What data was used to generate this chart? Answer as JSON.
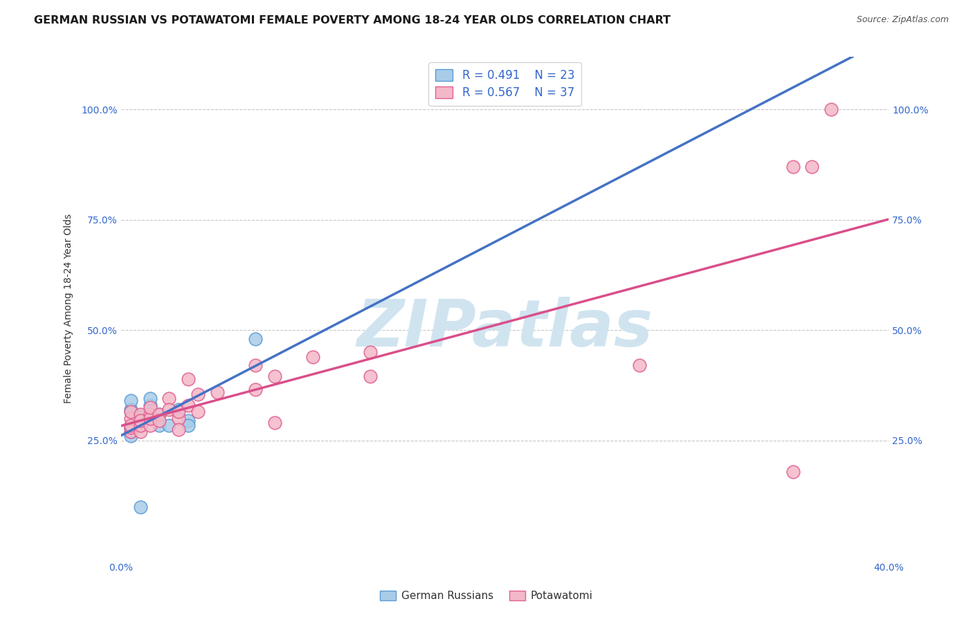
{
  "title": "GERMAN RUSSIAN VS POTAWATOMI FEMALE POVERTY AMONG 18-24 YEAR OLDS CORRELATION CHART",
  "source": "Source: ZipAtlas.com",
  "ylabel": "Female Poverty Among 18-24 Year Olds",
  "xlim": [
    0.0,
    0.4
  ],
  "ylim": [
    -0.02,
    1.12
  ],
  "xticks": [
    0.0,
    0.1,
    0.2,
    0.3,
    0.4
  ],
  "xtick_labels": [
    "0.0%",
    "",
    "",
    "",
    "40.0%"
  ],
  "yticks": [
    0.25,
    0.5,
    0.75,
    1.0
  ],
  "ytick_labels": [
    "25.0%",
    "50.0%",
    "75.0%",
    "100.0%"
  ],
  "blue_color": "#a8cce8",
  "pink_color": "#f4b8c8",
  "blue_edge_color": "#5b9bd5",
  "pink_edge_color": "#e06090",
  "blue_line_color": "#4472c4",
  "pink_line_color": "#d94f8a",
  "watermark": "ZIPatlas",
  "watermark_color": "#d0e4f0",
  "background_color": "#ffffff",
  "grid_color": "#c8c8c8",
  "title_fontsize": 11.5,
  "axis_label_fontsize": 10,
  "tick_fontsize": 10,
  "blue_scatter_x": [
    0.005,
    0.015,
    0.005,
    0.01,
    0.005,
    0.005,
    0.005,
    0.01,
    0.01,
    0.005,
    0.015,
    0.015,
    0.02,
    0.02,
    0.025,
    0.03,
    0.035,
    0.005,
    0.01,
    0.015,
    0.035,
    0.01,
    0.07
  ],
  "blue_scatter_y": [
    0.28,
    0.3,
    0.32,
    0.29,
    0.315,
    0.26,
    0.28,
    0.305,
    0.285,
    0.27,
    0.3,
    0.33,
    0.285,
    0.31,
    0.285,
    0.32,
    0.295,
    0.34,
    0.285,
    0.345,
    0.285,
    0.1,
    0.48
  ],
  "pink_scatter_x": [
    0.005,
    0.005,
    0.005,
    0.005,
    0.005,
    0.01,
    0.01,
    0.01,
    0.01,
    0.015,
    0.015,
    0.015,
    0.015,
    0.02,
    0.02,
    0.025,
    0.025,
    0.03,
    0.03,
    0.03,
    0.035,
    0.035,
    0.04,
    0.04,
    0.05,
    0.07,
    0.07,
    0.08,
    0.08,
    0.1,
    0.13,
    0.13,
    0.27,
    0.35,
    0.36,
    0.37,
    0.35
  ],
  "pink_scatter_y": [
    0.27,
    0.28,
    0.3,
    0.315,
    0.285,
    0.27,
    0.31,
    0.285,
    0.295,
    0.31,
    0.285,
    0.3,
    0.325,
    0.31,
    0.295,
    0.345,
    0.32,
    0.3,
    0.315,
    0.275,
    0.33,
    0.39,
    0.315,
    0.355,
    0.36,
    0.365,
    0.42,
    0.29,
    0.395,
    0.44,
    0.45,
    0.395,
    0.42,
    0.87,
    0.87,
    1.0,
    0.18
  ]
}
